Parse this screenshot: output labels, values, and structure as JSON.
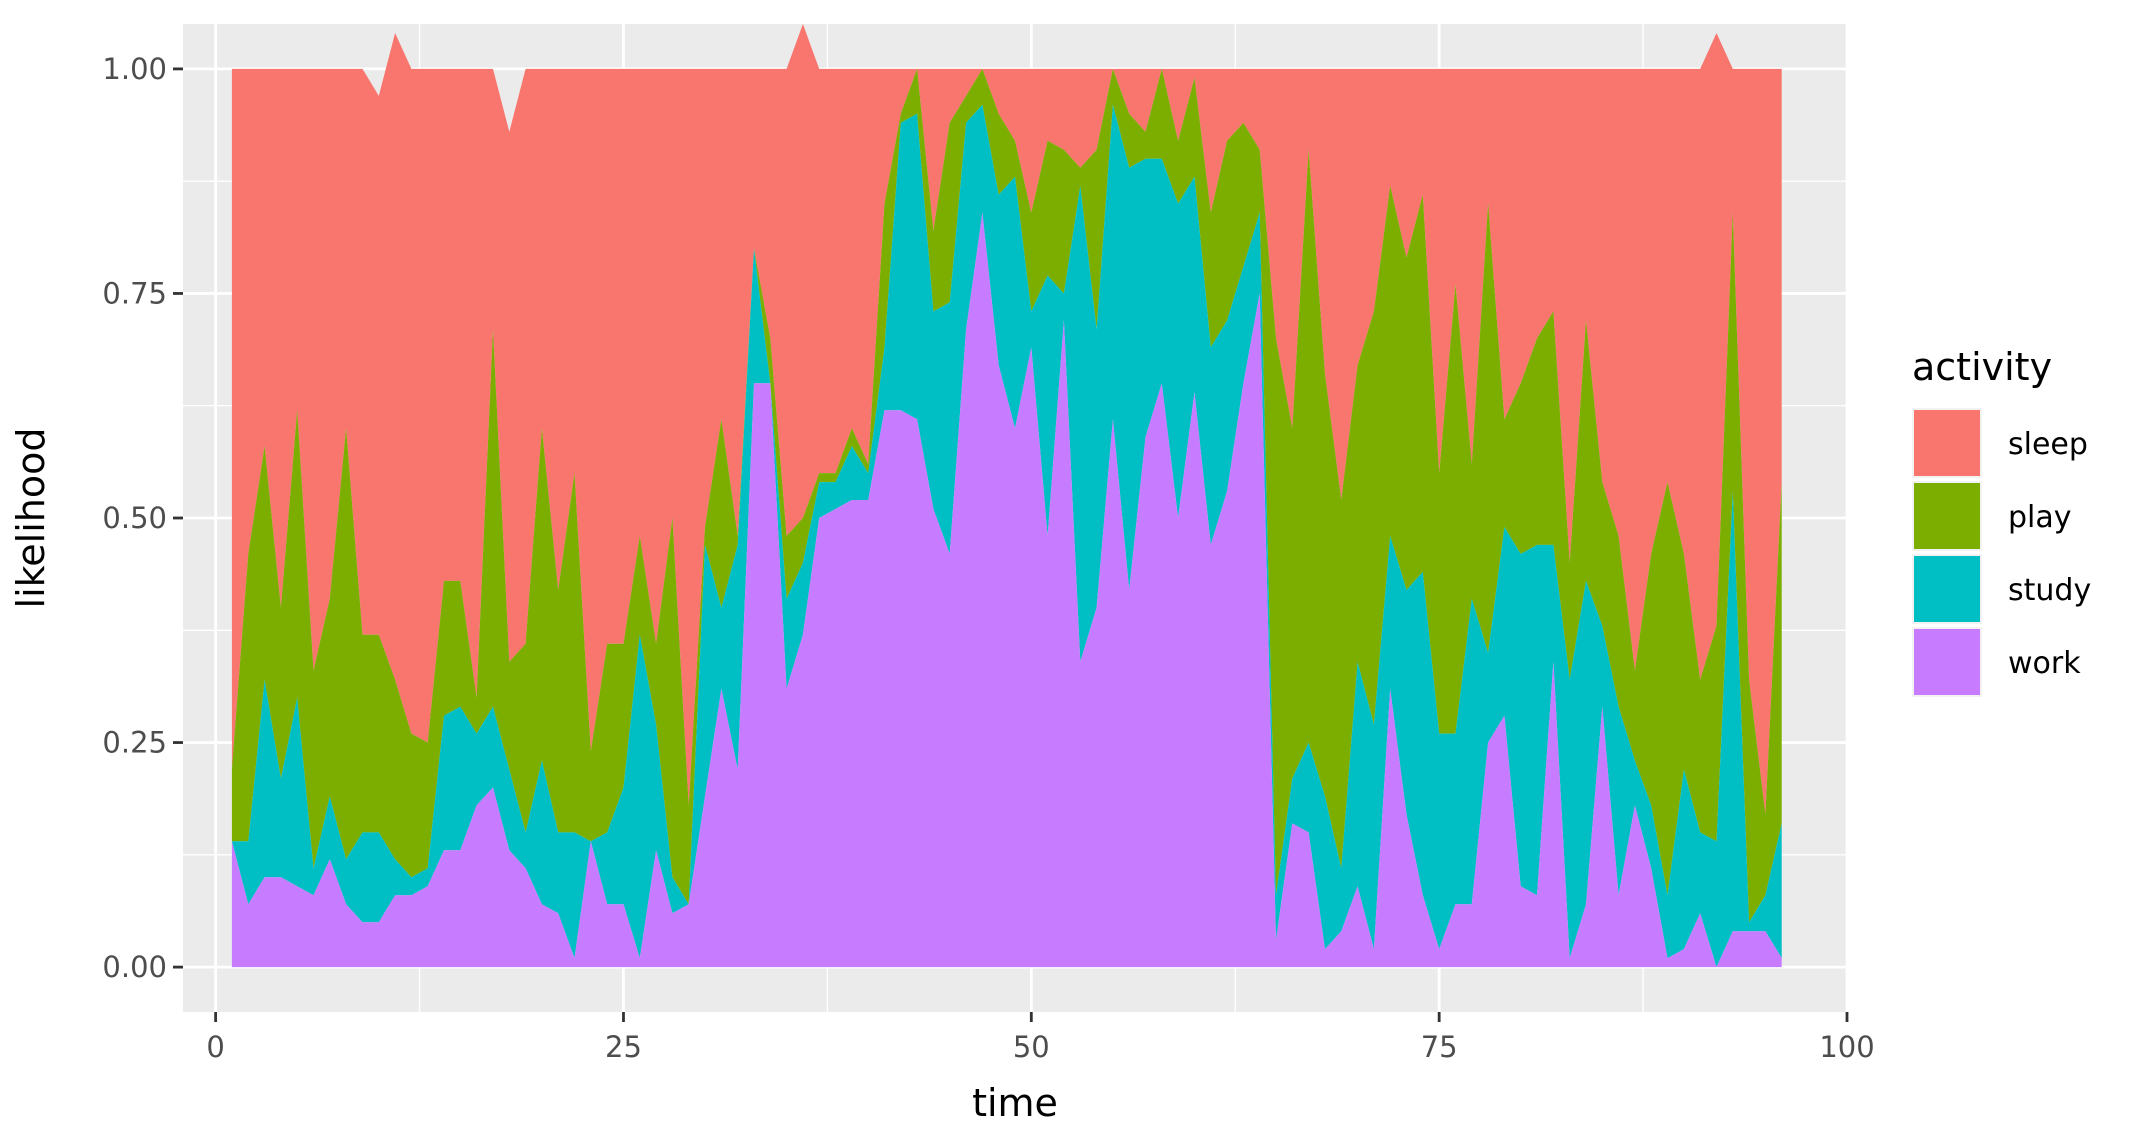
{
  "chart_data": {
    "type": "area",
    "stacked": true,
    "xlabel": "time",
    "ylabel": "likelihood",
    "xlim": [
      -2,
      100
    ],
    "ylim": [
      -0.05,
      1.05
    ],
    "xticks": [
      0,
      25,
      50,
      75,
      100
    ],
    "yticks": [
      0.0,
      0.25,
      0.5,
      0.75,
      1.0
    ],
    "ytick_labels": [
      "0.00",
      "0.25",
      "0.50",
      "0.75",
      "1.00"
    ],
    "grid": true,
    "legend": {
      "title": "activity",
      "position": "right"
    },
    "x": [
      1,
      2,
      3,
      4,
      5,
      6,
      7,
      8,
      9,
      10,
      11,
      12,
      13,
      14,
      15,
      16,
      17,
      18,
      19,
      20,
      21,
      22,
      23,
      24,
      25,
      26,
      27,
      28,
      29,
      30,
      31,
      32,
      33,
      34,
      35,
      36,
      37,
      38,
      39,
      40,
      41,
      42,
      43,
      44,
      45,
      46,
      47,
      48,
      49,
      50,
      51,
      52,
      53,
      54,
      55,
      56,
      57,
      58,
      59,
      60,
      61,
      62,
      63,
      64,
      65,
      66,
      67,
      68,
      69,
      70,
      71,
      72,
      73,
      74,
      75,
      76,
      77,
      78,
      79,
      80,
      81,
      82,
      83,
      84,
      85,
      86,
      87,
      88,
      89,
      90,
      91,
      92,
      93,
      94,
      95,
      96
    ],
    "series": [
      {
        "name": "sleep",
        "color": "#F8766D",
        "values": [
          0.78,
          0.54,
          0.42,
          0.6,
          0.38,
          0.67,
          0.59,
          0.4,
          0.63,
          0.6,
          0.72,
          0.74,
          0.75,
          0.57,
          0.57,
          0.7,
          0.29,
          0.59,
          0.64,
          0.4,
          0.58,
          0.45,
          0.76,
          0.64,
          0.64,
          0.52,
          0.64,
          0.5,
          0.82,
          0.51,
          0.39,
          0.52,
          0.2,
          0.3,
          0.52,
          0.55,
          0.45,
          0.45,
          0.4,
          0.44,
          0.15,
          0.05,
          0.0,
          0.18,
          0.06,
          0.03,
          0.0,
          0.05,
          0.08,
          0.16,
          0.08,
          0.09,
          0.11,
          0.09,
          0.0,
          0.05,
          0.07,
          0.0,
          0.08,
          0.01,
          0.16,
          0.08,
          0.06,
          0.09,
          0.3,
          0.4,
          0.09,
          0.34,
          0.48,
          0.33,
          0.27,
          0.13,
          0.21,
          0.14,
          0.45,
          0.24,
          0.44,
          0.15,
          0.39,
          0.35,
          0.3,
          0.27,
          0.55,
          0.28,
          0.46,
          0.52,
          0.67,
          0.54,
          0.46,
          0.54,
          0.68,
          0.66,
          0.16,
          0.68,
          0.83,
          0.46
        ]
      },
      {
        "name": "play",
        "color": "#7CAE00",
        "values": [
          0.08,
          0.32,
          0.26,
          0.19,
          0.32,
          0.22,
          0.22,
          0.48,
          0.22,
          0.22,
          0.2,
          0.16,
          0.14,
          0.15,
          0.14,
          0.04,
          0.42,
          0.12,
          0.21,
          0.37,
          0.27,
          0.4,
          0.1,
          0.21,
          0.16,
          0.11,
          0.09,
          0.4,
          0.11,
          0.02,
          0.21,
          0.01,
          0.0,
          0.05,
          0.07,
          0.05,
          0.01,
          0.01,
          0.02,
          0.01,
          0.16,
          0.01,
          0.05,
          0.09,
          0.2,
          0.03,
          0.04,
          0.09,
          0.04,
          0.11,
          0.15,
          0.16,
          0.02,
          0.2,
          0.04,
          0.06,
          0.03,
          0.1,
          0.07,
          0.11,
          0.15,
          0.2,
          0.16,
          0.07,
          0.62,
          0.39,
          0.66,
          0.47,
          0.41,
          0.33,
          0.46,
          0.39,
          0.37,
          0.42,
          0.29,
          0.5,
          0.15,
          0.5,
          0.12,
          0.19,
          0.23,
          0.26,
          0.13,
          0.29,
          0.16,
          0.19,
          0.1,
          0.28,
          0.46,
          0.24,
          0.17,
          0.24,
          0.31,
          0.27,
          0.09,
          0.38
        ]
      },
      {
        "name": "study",
        "color": "#00BFC4",
        "values": [
          0.0,
          0.07,
          0.22,
          0.11,
          0.21,
          0.03,
          0.07,
          0.05,
          0.1,
          0.1,
          0.04,
          0.02,
          0.02,
          0.15,
          0.16,
          0.08,
          0.09,
          0.09,
          0.04,
          0.16,
          0.09,
          0.14,
          0.0,
          0.08,
          0.13,
          0.36,
          0.14,
          0.04,
          0.0,
          0.28,
          0.09,
          0.25,
          0.15,
          0.0,
          0.1,
          0.08,
          0.04,
          0.03,
          0.06,
          0.03,
          0.07,
          0.32,
          0.34,
          0.22,
          0.28,
          0.23,
          0.12,
          0.19,
          0.28,
          0.04,
          0.29,
          0.03,
          0.53,
          0.31,
          0.35,
          0.47,
          0.31,
          0.25,
          0.35,
          0.24,
          0.22,
          0.19,
          0.13,
          0.09,
          0.05,
          0.05,
          0.1,
          0.17,
          0.07,
          0.25,
          0.25,
          0.17,
          0.25,
          0.36,
          0.24,
          0.19,
          0.34,
          0.1,
          0.21,
          0.37,
          0.39,
          0.13,
          0.31,
          0.36,
          0.09,
          0.21,
          0.05,
          0.07,
          0.07,
          0.2,
          0.09,
          0.14,
          0.49,
          0.01,
          0.04,
          0.15
        ]
      },
      {
        "name": "work",
        "color": "#C77CFF",
        "values": [
          0.14,
          0.07,
          0.1,
          0.1,
          0.09,
          0.08,
          0.12,
          0.07,
          0.05,
          0.05,
          0.08,
          0.08,
          0.09,
          0.13,
          0.13,
          0.18,
          0.2,
          0.13,
          0.11,
          0.07,
          0.06,
          0.01,
          0.14,
          0.07,
          0.07,
          0.01,
          0.13,
          0.06,
          0.07,
          0.19,
          0.31,
          0.22,
          0.65,
          0.65,
          0.31,
          0.37,
          0.5,
          0.51,
          0.52,
          0.52,
          0.62,
          0.62,
          0.61,
          0.51,
          0.46,
          0.71,
          0.84,
          0.67,
          0.6,
          0.69,
          0.48,
          0.72,
          0.34,
          0.4,
          0.61,
          0.42,
          0.59,
          0.65,
          0.5,
          0.64,
          0.47,
          0.53,
          0.65,
          0.75,
          0.03,
          0.16,
          0.15,
          0.02,
          0.04,
          0.09,
          0.02,
          0.31,
          0.17,
          0.08,
          0.02,
          0.07,
          0.07,
          0.25,
          0.28,
          0.09,
          0.08,
          0.34,
          0.01,
          0.07,
          0.29,
          0.08,
          0.18,
          0.11,
          0.01,
          0.02,
          0.06,
          0.0,
          0.04,
          0.04,
          0.04,
          0.01
        ]
      }
    ]
  }
}
